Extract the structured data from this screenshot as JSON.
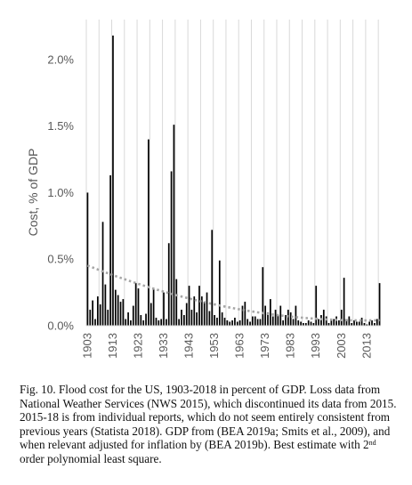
{
  "chart_data": {
    "type": "bar",
    "ylabel": "Cost, % of GDP",
    "xlabel": "",
    "ylim": [
      0,
      2.3
    ],
    "yticks": [
      0,
      0.5,
      1.0,
      1.5,
      2.0
    ],
    "ytick_labels": [
      "0.0%",
      "0.5%",
      "1.0%",
      "1.5%",
      "2.0%"
    ],
    "xlim": [
      1903,
      2018
    ],
    "xticks": [
      1903,
      1913,
      1923,
      1933,
      1943,
      1953,
      1963,
      1973,
      1983,
      1993,
      2003,
      2013
    ],
    "grid": "vertical",
    "bar_color": "#000000",
    "trend_color": "#a6a6a6",
    "x": [
      1903,
      1904,
      1905,
      1906,
      1907,
      1908,
      1909,
      1910,
      1911,
      1912,
      1913,
      1914,
      1915,
      1916,
      1917,
      1918,
      1919,
      1920,
      1921,
      1922,
      1923,
      1924,
      1925,
      1926,
      1927,
      1928,
      1929,
      1930,
      1931,
      1932,
      1933,
      1934,
      1935,
      1936,
      1937,
      1938,
      1939,
      1940,
      1941,
      1942,
      1943,
      1944,
      1945,
      1946,
      1947,
      1948,
      1949,
      1950,
      1951,
      1952,
      1953,
      1954,
      1955,
      1956,
      1957,
      1958,
      1959,
      1960,
      1961,
      1962,
      1963,
      1964,
      1965,
      1966,
      1967,
      1968,
      1969,
      1970,
      1971,
      1972,
      1973,
      1974,
      1975,
      1976,
      1977,
      1978,
      1979,
      1980,
      1981,
      1982,
      1983,
      1984,
      1985,
      1986,
      1987,
      1988,
      1989,
      1990,
      1991,
      1992,
      1993,
      1994,
      1995,
      1996,
      1997,
      1998,
      1999,
      2000,
      2001,
      2002,
      2003,
      2004,
      2005,
      2006,
      2007,
      2008,
      2009,
      2010,
      2011,
      2012,
      2013,
      2014,
      2015,
      2016,
      2017,
      2018
    ],
    "values": [
      1.0,
      0.12,
      0.19,
      0.05,
      0.22,
      0.16,
      0.78,
      0.31,
      0.12,
      1.13,
      2.18,
      0.27,
      0.23,
      0.18,
      0.2,
      0.05,
      0.1,
      0.04,
      0.15,
      0.32,
      0.28,
      0.08,
      0.04,
      0.09,
      1.4,
      0.17,
      0.28,
      0.06,
      0.04,
      0.05,
      0.25,
      0.05,
      0.62,
      1.16,
      1.51,
      0.35,
      0.05,
      0.12,
      0.08,
      0.17,
      0.3,
      0.12,
      0.22,
      0.1,
      0.3,
      0.22,
      0.18,
      0.25,
      0.11,
      0.72,
      0.08,
      0.06,
      0.49,
      0.1,
      0.06,
      0.04,
      0.03,
      0.04,
      0.06,
      0.03,
      0.04,
      0.15,
      0.18,
      0.05,
      0.03,
      0.07,
      0.07,
      0.05,
      0.05,
      0.44,
      0.15,
      0.1,
      0.2,
      0.07,
      0.12,
      0.08,
      0.15,
      0.04,
      0.08,
      0.12,
      0.1,
      0.05,
      0.15,
      0.04,
      0.03,
      0.02,
      0.02,
      0.04,
      0.03,
      0.02,
      0.3,
      0.05,
      0.08,
      0.12,
      0.07,
      0.02,
      0.04,
      0.05,
      0.07,
      0.04,
      0.12,
      0.36,
      0.05,
      0.07,
      0.02,
      0.04,
      0.03,
      0.03,
      0.06,
      0.02,
      0.01,
      0.03,
      0.04,
      0.02,
      0.05,
      0.32
    ],
    "trend": {
      "degree": 2,
      "coefficients": [
        0.4525,
        -0.0076,
        3.5e-05
      ]
    }
  },
  "caption": {
    "part1": "Fig. 10. Flood cost for the US, 1903-2018 in percent of GDP. Loss data from National Weather Services (NWS 2015), which discontinued its data from 2015. 2015-18 is from individual reports, which do not seem entirely consistent from previous years (Statista 2018). GDP from (BEA 2019a; Smits et al., 2009), and when relevant adjusted for inflation by (BEA 2019b). Best estimate with 2",
    "sup": "nd",
    "part2": " order polynomial least square."
  }
}
